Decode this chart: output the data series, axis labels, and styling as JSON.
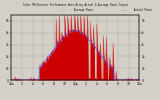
{
  "title": "Solar PV/Inverter Performance West Array Actual & Average Power Output",
  "bg_color": "#d4d0c8",
  "plot_bg_color": "#d4d0c8",
  "actual_color": "#cc0000",
  "average_color": "#4444ff",
  "grid_color": "#aaaaaa",
  "ylim": [
    0,
    5500
  ],
  "num_points": 300,
  "legend_actual": "Actual Power",
  "legend_average": "Average Power"
}
